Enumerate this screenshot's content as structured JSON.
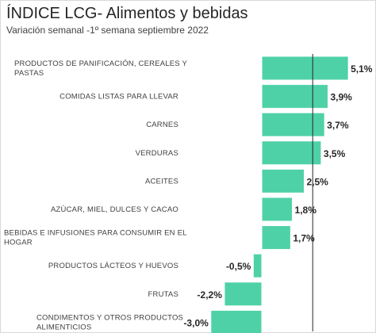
{
  "chart_data": {
    "type": "bar",
    "orientation": "horizontal",
    "title": "ÍNDICE LCG- Alimentos y bebidas",
    "subtitle": "Variación semanal -1º semana septiembre 2022",
    "categories": [
      [
        "PRODUCTOS DE PANIFICACIÓN, CEREALES Y",
        "PASTAS"
      ],
      [
        "COMIDAS LISTAS PARA LLEVAR"
      ],
      [
        "CARNES"
      ],
      [
        "VERDURAS"
      ],
      [
        "ACEITES"
      ],
      [
        "AZÚCAR, MIEL, DULCES Y CACAO"
      ],
      [
        "BEBIDAS E INFUSIONES PARA CONSUMIR EN EL",
        "HOGAR"
      ],
      [
        "PRODUCTOS LÁCTEOS Y HUEVOS"
      ],
      [
        "FRUTAS"
      ],
      [
        "CONDIMENTOS Y OTROS PRODUCTOS",
        "ALIMENTICIOS"
      ]
    ],
    "values": [
      5.1,
      3.9,
      3.7,
      3.5,
      2.5,
      1.8,
      1.7,
      -0.5,
      -2.2,
      -3.0
    ],
    "data_labels": [
      "5,1%",
      "3,9%",
      "3,7%",
      "3,5%",
      "2,5%",
      "1,8%",
      "1,7%",
      "-0,5%",
      "-2,2%",
      "-3,0%"
    ],
    "reference_line": 3.0,
    "xlim": [
      -3.0,
      5.1
    ],
    "grid": false,
    "legend": "none",
    "colors": {
      "bar": "#4fd1a8",
      "bar_border": "#ffffff",
      "reference_line": "#262626",
      "label_text": "#404040",
      "value_text": "#262626"
    }
  }
}
